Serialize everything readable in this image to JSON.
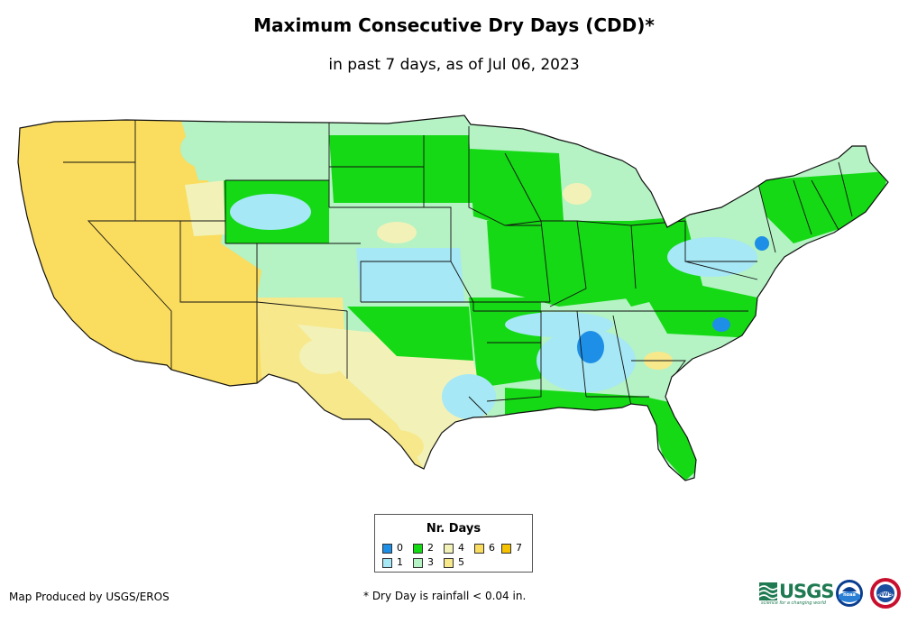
{
  "header": {
    "title": "Maximum Consecutive Dry Days (CDD)*",
    "subtitle": "in past 7 days, as of Jul 06, 2023"
  },
  "map": {
    "region": "Contiguous United States",
    "state_border_color": "#111111",
    "palette": {
      "0": "#1e8fe6",
      "1": "#a6e8f5",
      "2": "#14d914",
      "3": "#b5f2c4",
      "4": "#f2f2b8",
      "5": "#f7e88c",
      "6": "#fadc5e",
      "7": "#f5c200"
    }
  },
  "legend": {
    "title": "Nr. Days",
    "items": [
      {
        "label": "0",
        "color": "#1e8fe6"
      },
      {
        "label": "1",
        "color": "#a6e8f5"
      },
      {
        "label": "2",
        "color": "#14d914"
      },
      {
        "label": "3",
        "color": "#b5f2c4"
      },
      {
        "label": "4",
        "color": "#f2f2b8"
      },
      {
        "label": "5",
        "color": "#f7e88c"
      },
      {
        "label": "6",
        "color": "#fadc5e"
      },
      {
        "label": "7",
        "color": "#f5c200"
      }
    ]
  },
  "footer": {
    "credit": "Map Produced by USGS/EROS",
    "footnote": "* Dry Day is rainfall < 0.04 in.",
    "logos": {
      "usgs_text": "USGS",
      "usgs_tagline": "science for a changing world",
      "noaa_text": "noaa",
      "nws_text": "NWS"
    }
  }
}
